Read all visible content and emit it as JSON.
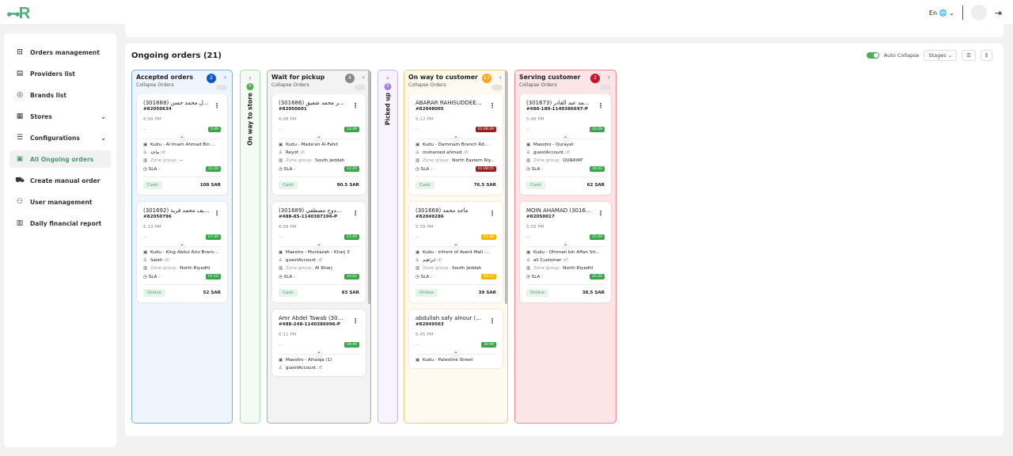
{
  "header": {
    "logo": "R",
    "language": "En"
  },
  "sidebar": {
    "items": [
      {
        "label": "Orders management",
        "icon": "inbox-icon",
        "glyph": "⊡"
      },
      {
        "label": "Providers list",
        "icon": "store-icon",
        "glyph": "▤"
      },
      {
        "label": "Brands list",
        "icon": "badge-check-icon",
        "glyph": "◎"
      },
      {
        "label": "Stores",
        "icon": "shop-icon",
        "glyph": "▦",
        "chevron": true
      },
      {
        "label": "Configurations",
        "icon": "sliders-icon",
        "glyph": "☰",
        "chevron": true
      },
      {
        "label": "All Ongoing orders",
        "icon": "orders-list-icon",
        "glyph": "▣",
        "active": true
      },
      {
        "label": "Create manual order",
        "icon": "cart-icon",
        "glyph": "⛟"
      },
      {
        "label": "User management",
        "icon": "users-icon",
        "glyph": "⚇"
      },
      {
        "label": "Daily financial report",
        "icon": "report-icon",
        "glyph": "▥"
      }
    ]
  },
  "main": {
    "title": "Ongoing orders (21)",
    "auto_collapse": "Auto Collapse",
    "stages": "Stages ⌄"
  },
  "columns": [
    {
      "title": "Accepted orders",
      "sub": "Collapse Orders",
      "count": "2",
      "color": "#1456c8",
      "border": "#7aaee8",
      "bg": "#eef5fd",
      "cards": [
        {
          "name": "(301688) ـل عادل محمد حسن",
          "id": "#82050634",
          "time": "6:09 PM",
          "timer": "5:49",
          "tc": "#3aa54a",
          "store": "Kudu - Al Imam Ahmad Bin ...",
          "cust": "ماجد :",
          "zone": "--",
          "sla": "11:20",
          "sc": "#3aa54a",
          "pay": "Cash",
          "amt": "108 SAR"
        },
        {
          "name": "(301692) تسليم عريف محمد فرية",
          "id": "#82050796",
          "time": "6:13 PM",
          "timer": "07:49",
          "tc": "#3aa54a",
          "store": "Kudu - King Abdul Aziz Branc...",
          "cust": "Saleh :",
          "zone": "North Riyadhl",
          "sla": "07:10",
          "sc": "#3aa54a",
          "pay": "Online",
          "amt": "52 SAR"
        }
      ]
    },
    {
      "collapsed": true,
      "title": "On way to store",
      "count": "0",
      "color": "#4caf50",
      "border": "#a8dbb0",
      "bg": "#f3fbf4"
    },
    {
      "title": "Wait for pickup",
      "sub": "Collapse Orders",
      "count": "4",
      "color": "#888888",
      "border": "#aaaaaa",
      "bg": "#f3f3f3",
      "scroll": true,
      "cards": [
        {
          "name": "(301686) ـمد طهير محمد شفيق",
          "id": "#82050601",
          "time": "6:08 PM",
          "timer": "12:49",
          "tc": "#3aa54a",
          "store": "Kudu - Mada'en Al-Fahd",
          "cust": "Reyof :",
          "zone": "South Jeddah",
          "sla": "12:20",
          "sc": "#3aa54a",
          "pay": "Cash",
          "amt": "90.5 SAR"
        },
        {
          "name": "(301689) ـي ممدوح مصطفي",
          "id": "#488-85-1140387196-P",
          "time": "6:09 PM",
          "timer": "11:49",
          "tc": "#3aa54a",
          "store": "Maestro - Muntazah - Kharj 3",
          "cust": "guestAccount :",
          "zone": "Al Kharj",
          "sla": "10:02",
          "sc": "#3aa54a",
          "pay": "Cash",
          "amt": "93 SAR"
        },
        {
          "name": "Amr Abdel Tawab (301...",
          "id": "#488-248-1140386996-P",
          "time": "6:11 PM",
          "timer": "09:49",
          "tc": "#3aa54a",
          "store": "Maestro - Alhalqa (1)",
          "cust": "guestAccount :",
          "zone": "",
          "sla": "",
          "sc": "#3aa54a",
          "pay": "",
          "amt": ""
        }
      ]
    },
    {
      "collapsed": true,
      "title": "Picked up",
      "count": "0",
      "color": "#a77de8",
      "border": "#c9b3f0",
      "bg": "#f8f4ff"
    },
    {
      "title": "On way to customer",
      "sub": "Collapse Orders",
      "count": "13",
      "color": "#f5a623",
      "border": "#f7c97a",
      "bg": "#fffaf0",
      "scroll": true,
      "cards": [
        {
          "name": "ABARAR RAHISUDDEEN ...",
          "id": "#82048005",
          "time": "5:12 PM",
          "timer": "01:08:49",
          "tc": "#9b1c1c",
          "store": "Kudu - Dammam Branch Rd...",
          "cust": "mohamed ahmed :",
          "zone": "North Eastern Riy...",
          "sla": "01:08:05",
          "sc": "#9b1c1c",
          "pay": "Cash",
          "amt": "76.5 SAR"
        },
        {
          "name": "(301668) ماجد محمد",
          "id": "#82049286",
          "time": "5:39 PM",
          "timer": "41:49",
          "tc": "#f5b800",
          "store": "Kudu - infront of Avent Mall -...",
          "cust": "ابراهيم :",
          "zone": "South Jeddah",
          "sla": "40:12",
          "sc": "#f5b800",
          "pay": "Online",
          "amt": "39 SAR"
        },
        {
          "name": "abdullah safy alnour (...",
          "id": "#82049563",
          "time": "5:45 PM",
          "timer": "30:49",
          "tc": "#3aa54a",
          "store": "Kudu - Palestine Street",
          "cust": "",
          "zone": "",
          "sla": "",
          "sc": "#3aa54a",
          "pay": "",
          "amt": ""
        }
      ]
    },
    {
      "title": "Serving customer",
      "sub": "Collapse Orders",
      "count": "2",
      "color": "#c8102e",
      "border": "#e88a8f",
      "bg": "#fbe5e7",
      "cards": [
        {
          "name": "(301673) احمد محمد عبد القادر",
          "id": "#488-180-1140386697-P",
          "time": "5:48 PM",
          "timer": "33:49",
          "tc": "#3aa54a",
          "store": "Maestro - Qurayat",
          "cust": "guestAccount :",
          "zone": "QURAYAT",
          "sla": "30:41",
          "sc": "#3aa54a",
          "pay": "Cash",
          "amt": "62 SAR"
        },
        {
          "name": "MOIN AHAMAD (301681)",
          "id": "#82050017",
          "time": "5:55 PM",
          "timer": "25:49",
          "tc": "#3aa54a",
          "store": "Kudu - Othman bin Affan Str...",
          "cust": "ali Customer :",
          "zone": "North Riyadhl",
          "sla": "25:20",
          "sc": "#3aa54a",
          "pay": "Online",
          "amt": "38.5 SAR"
        }
      ]
    }
  ],
  "labels": {
    "zone": "Zone group:",
    "sla": "SLA :",
    "zone_wrap": "Zone group:",
    "dash": "--"
  }
}
